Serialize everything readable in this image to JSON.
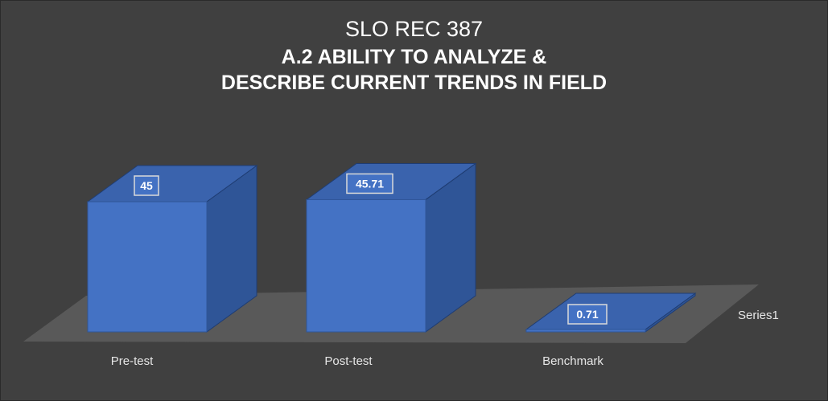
{
  "chart_data": {
    "type": "bar",
    "title_lines": [
      "SLO REC 387",
      "A.2 ABILITY TO ANALYZE &",
      "DESCRIBE CURRENT TRENDS IN FIELD"
    ],
    "categories": [
      "Pre-test",
      "Post-test",
      "Benchmark"
    ],
    "series": [
      {
        "name": "Series1",
        "values": [
          45,
          45.71,
          0.71
        ]
      }
    ],
    "data_labels": [
      "45",
      "45.71",
      "0.71"
    ],
    "legend_position": "right",
    "bar_style": "3d",
    "gridlines": false,
    "ylim": [
      0,
      50
    ]
  },
  "colors": {
    "background": "#404040",
    "floor": "#595959",
    "bar_front": "#4472c4",
    "bar_side": "#2f5597",
    "bar_top": "#3a63ad",
    "text": "#ffffff",
    "label_text": "#e6e6e6"
  }
}
